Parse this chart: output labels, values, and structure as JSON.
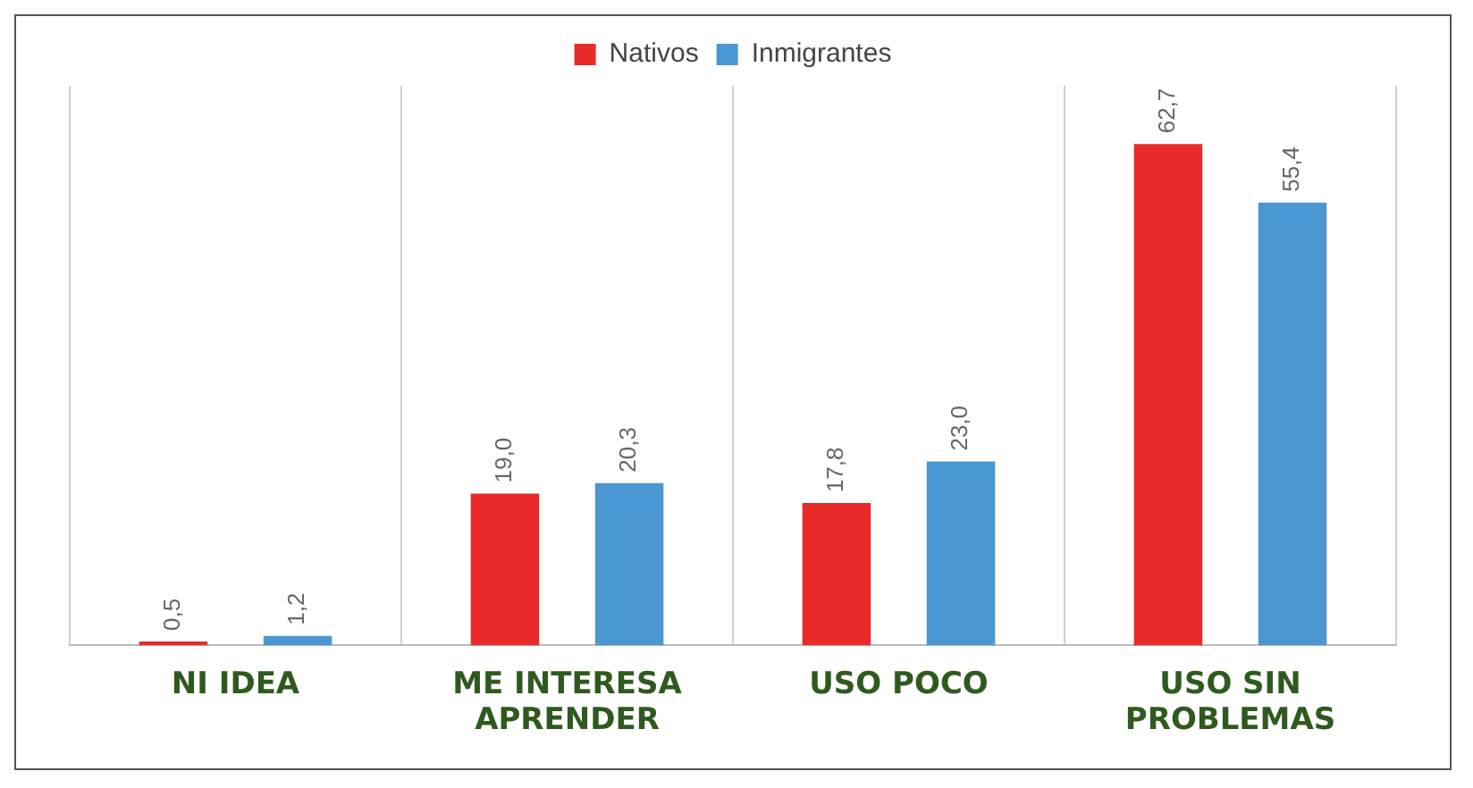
{
  "chart_data": {
    "type": "bar",
    "categories": [
      "NI IDEA",
      "ME INTERESA APRENDER",
      "USO POCO",
      "USO SIN PROBLEMAS"
    ],
    "series": [
      {
        "name": "Nativos",
        "color": "#e82a2b",
        "values": [
          0.5,
          19.0,
          17.8,
          62.7
        ],
        "value_labels": [
          "0,5",
          "19,0",
          "17,8",
          "62,7"
        ]
      },
      {
        "name": "Inmigrantes",
        "color": "#4b97d1",
        "values": [
          1.2,
          20.3,
          23.0,
          55.4
        ],
        "value_labels": [
          "1,2",
          "20,3",
          "23,0",
          "55,4"
        ]
      }
    ],
    "grid": "x",
    "legend": "top"
  }
}
